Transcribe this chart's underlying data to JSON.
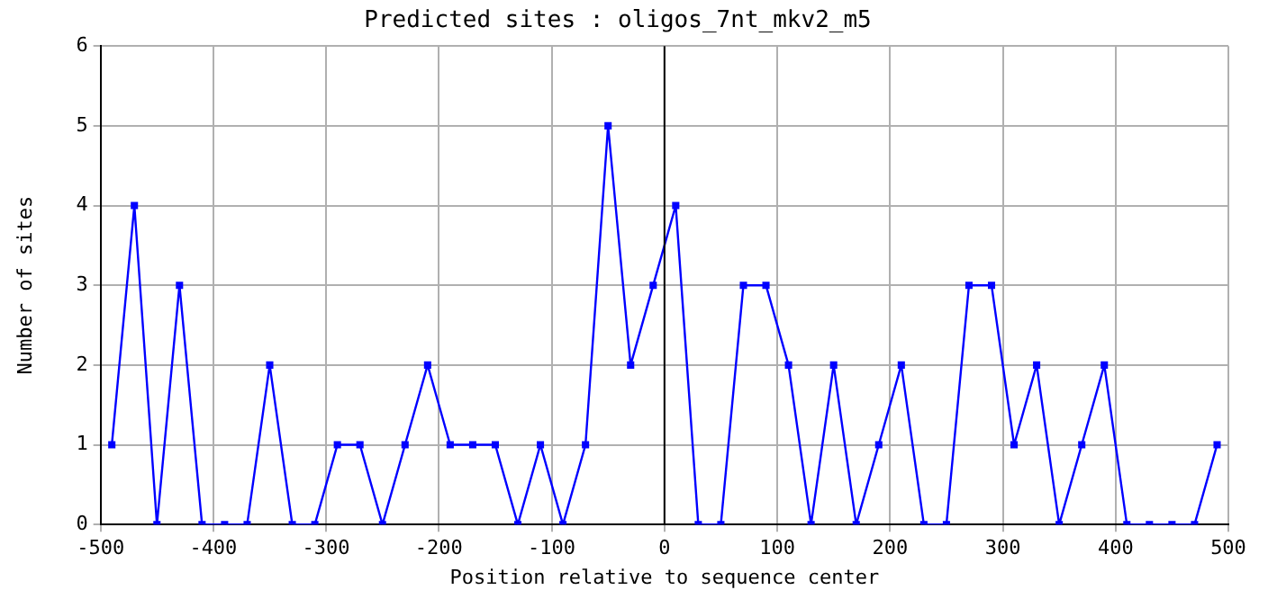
{
  "chart_data": {
    "type": "line",
    "title": "Predicted sites : oligos_7nt_mkv2_m5",
    "xlabel": "Position relative to sequence center",
    "ylabel": "Number of sites",
    "x": [
      -490,
      -470,
      -450,
      -430,
      -410,
      -390,
      -370,
      -350,
      -330,
      -310,
      -290,
      -270,
      -250,
      -230,
      -210,
      -190,
      -170,
      -150,
      -130,
      -110,
      -90,
      -70,
      -50,
      -30,
      -10,
      10,
      30,
      50,
      70,
      90,
      110,
      130,
      150,
      170,
      190,
      210,
      230,
      250,
      270,
      290,
      310,
      330,
      350,
      370,
      390,
      410,
      430,
      450,
      470,
      490
    ],
    "series": [
      {
        "color": "#0000ff",
        "values": [
          1,
          4,
          0,
          3,
          0,
          0,
          0,
          2,
          0,
          0,
          1,
          1,
          0,
          1,
          2,
          1,
          1,
          1,
          0,
          1,
          0,
          1,
          5,
          2,
          3,
          4,
          0,
          0,
          3,
          3,
          2,
          0,
          2,
          0,
          1,
          2,
          0,
          0,
          3,
          3,
          1,
          2,
          0,
          1,
          2,
          0,
          0,
          0,
          0,
          1
        ]
      }
    ],
    "xlim": [
      -500,
      500
    ],
    "xticks": [
      -500,
      -400,
      -300,
      -200,
      -100,
      0,
      100,
      200,
      300,
      400,
      500
    ],
    "ylim": [
      0,
      6
    ],
    "yticks": [
      0,
      1,
      2,
      3,
      4,
      5,
      6
    ],
    "ref_lines": [
      {
        "axis": "x",
        "value": 0,
        "color": "#000000"
      }
    ],
    "grid": true,
    "marker": "square",
    "line_style": "solid"
  }
}
